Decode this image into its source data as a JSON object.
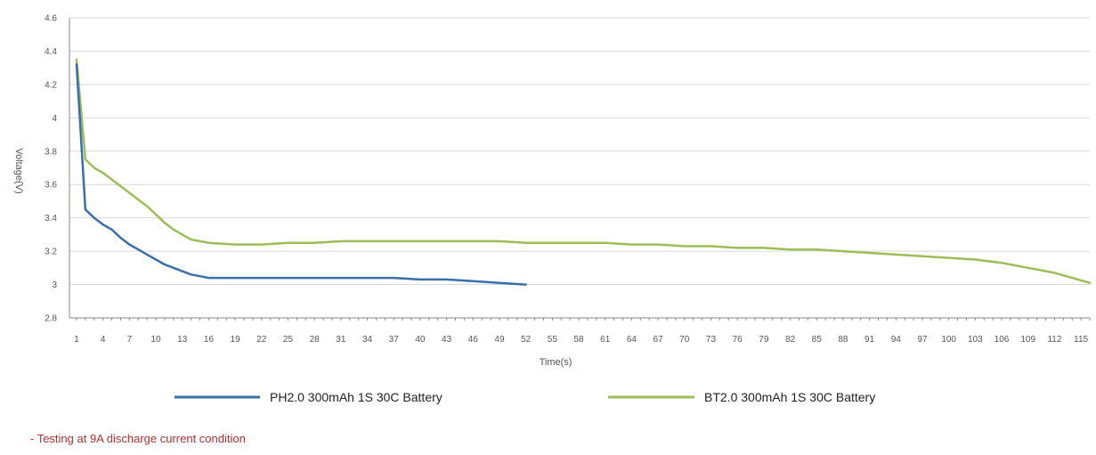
{
  "chart_data": {
    "type": "line",
    "xlabel": "Time(s)",
    "ylabel": "Voltage(V)",
    "ylim": [
      2.8,
      4.6
    ],
    "yticks": [
      "2.8",
      "3",
      "3.2",
      "3.4",
      "3.6",
      "3.8",
      "4",
      "4.2",
      "4.4",
      "4.6"
    ],
    "xlim": [
      1,
      116
    ],
    "xticks": [
      "1",
      "4",
      "7",
      "10",
      "13",
      "16",
      "19",
      "22",
      "25",
      "28",
      "31",
      "34",
      "37",
      "40",
      "43",
      "46",
      "49",
      "52",
      "55",
      "58",
      "61",
      "64",
      "67",
      "70",
      "73",
      "76",
      "79",
      "82",
      "85",
      "88",
      "91",
      "94",
      "97",
      "100",
      "103",
      "106",
      "109",
      "112",
      "115"
    ],
    "grid": "horizontal",
    "legend_position": "bottom",
    "series": [
      {
        "name": "PH2.0 300mAh 1S 30C Battery",
        "color": "#3a6fa8",
        "points": [
          [
            1,
            4.32
          ],
          [
            2,
            3.45
          ],
          [
            3,
            3.4
          ],
          [
            4,
            3.36
          ],
          [
            5,
            3.33
          ],
          [
            6,
            3.28
          ],
          [
            7,
            3.24
          ],
          [
            8,
            3.21
          ],
          [
            9,
            3.18
          ],
          [
            10,
            3.15
          ],
          [
            11,
            3.12
          ],
          [
            12,
            3.1
          ],
          [
            13,
            3.08
          ],
          [
            14,
            3.06
          ],
          [
            15,
            3.05
          ],
          [
            16,
            3.04
          ],
          [
            19,
            3.04
          ],
          [
            22,
            3.04
          ],
          [
            25,
            3.04
          ],
          [
            28,
            3.04
          ],
          [
            31,
            3.04
          ],
          [
            34,
            3.04
          ],
          [
            37,
            3.04
          ],
          [
            40,
            3.03
          ],
          [
            43,
            3.03
          ],
          [
            46,
            3.02
          ],
          [
            49,
            3.01
          ],
          [
            52,
            3.0
          ]
        ]
      },
      {
        "name": "BT2.0 300mAh 1S 30C Battery",
        "color": "#9cbd58",
        "points": [
          [
            1,
            4.35
          ],
          [
            2,
            3.75
          ],
          [
            3,
            3.7
          ],
          [
            4,
            3.67
          ],
          [
            5,
            3.63
          ],
          [
            6,
            3.59
          ],
          [
            7,
            3.55
          ],
          [
            8,
            3.51
          ],
          [
            9,
            3.47
          ],
          [
            10,
            3.42
          ],
          [
            11,
            3.37
          ],
          [
            12,
            3.33
          ],
          [
            13,
            3.3
          ],
          [
            14,
            3.27
          ],
          [
            15,
            3.26
          ],
          [
            16,
            3.25
          ],
          [
            19,
            3.24
          ],
          [
            22,
            3.24
          ],
          [
            25,
            3.25
          ],
          [
            28,
            3.25
          ],
          [
            31,
            3.26
          ],
          [
            34,
            3.26
          ],
          [
            37,
            3.26
          ],
          [
            40,
            3.26
          ],
          [
            43,
            3.26
          ],
          [
            46,
            3.26
          ],
          [
            49,
            3.26
          ],
          [
            52,
            3.25
          ],
          [
            55,
            3.25
          ],
          [
            58,
            3.25
          ],
          [
            61,
            3.25
          ],
          [
            64,
            3.24
          ],
          [
            67,
            3.24
          ],
          [
            70,
            3.23
          ],
          [
            73,
            3.23
          ],
          [
            76,
            3.22
          ],
          [
            79,
            3.22
          ],
          [
            82,
            3.21
          ],
          [
            85,
            3.21
          ],
          [
            88,
            3.2
          ],
          [
            91,
            3.19
          ],
          [
            94,
            3.18
          ],
          [
            97,
            3.17
          ],
          [
            100,
            3.16
          ],
          [
            103,
            3.15
          ],
          [
            106,
            3.13
          ],
          [
            109,
            3.1
          ],
          [
            112,
            3.07
          ],
          [
            114,
            3.04
          ],
          [
            116,
            3.01
          ]
        ]
      }
    ]
  },
  "note": "- Testing at 9A discharge current condition"
}
